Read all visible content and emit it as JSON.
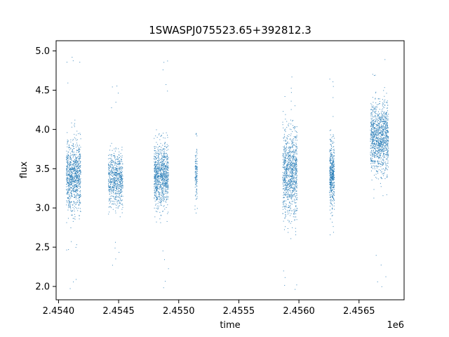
{
  "chart_data": {
    "type": "scatter",
    "title": "1SWASPJ075523.65+392812.3",
    "xlabel": "time",
    "ylabel": "flux",
    "x_offset_label": "1e6",
    "xlim": [
      2.45398,
      2.456875
    ],
    "ylim": [
      1.83,
      5.13
    ],
    "grid": false,
    "legend": "none",
    "marker_color": "#1f77b4",
    "x_ticks": [
      2.454,
      2.4545,
      2.455,
      2.4555,
      2.456,
      2.4565
    ],
    "x_tick_labels": [
      "2.4540",
      "2.4545",
      "2.4550",
      "2.4555",
      "2.4560",
      "2.4565"
    ],
    "y_ticks": [
      2.0,
      2.5,
      3.0,
      3.5,
      4.0,
      4.5,
      5.0
    ],
    "y_tick_labels": [
      "2.0",
      "2.5",
      "3.0",
      "3.5",
      "4.0",
      "4.5",
      "5.0"
    ],
    "clusters": [
      {
        "x_start": 2.454065,
        "x_end": 2.454185,
        "center": 3.42,
        "spread": 0.22,
        "y_min": 1.95,
        "y_max": 4.93,
        "points": 900
      },
      {
        "x_start": 2.454415,
        "x_end": 2.454535,
        "center": 3.38,
        "spread": 0.18,
        "y_min": 2.02,
        "y_max": 4.84,
        "points": 650
      },
      {
        "x_start": 2.454795,
        "x_end": 2.454915,
        "center": 3.42,
        "spread": 0.2,
        "y_min": 1.98,
        "y_max": 4.93,
        "points": 900
      },
      {
        "x_start": 2.455135,
        "x_end": 2.455155,
        "center": 3.45,
        "spread": 0.16,
        "y_min": 2.85,
        "y_max": 4.05,
        "points": 120
      },
      {
        "x_start": 2.455865,
        "x_end": 2.455985,
        "center": 3.45,
        "spread": 0.28,
        "y_min": 1.95,
        "y_max": 4.9,
        "points": 950
      },
      {
        "x_start": 2.456255,
        "x_end": 2.456295,
        "center": 3.42,
        "spread": 0.2,
        "y_min": 2.6,
        "y_max": 4.75,
        "points": 450
      },
      {
        "x_start": 2.456595,
        "x_end": 2.456745,
        "center": 3.88,
        "spread": 0.22,
        "y_min": 1.95,
        "y_max": 4.97,
        "points": 1100
      }
    ]
  }
}
